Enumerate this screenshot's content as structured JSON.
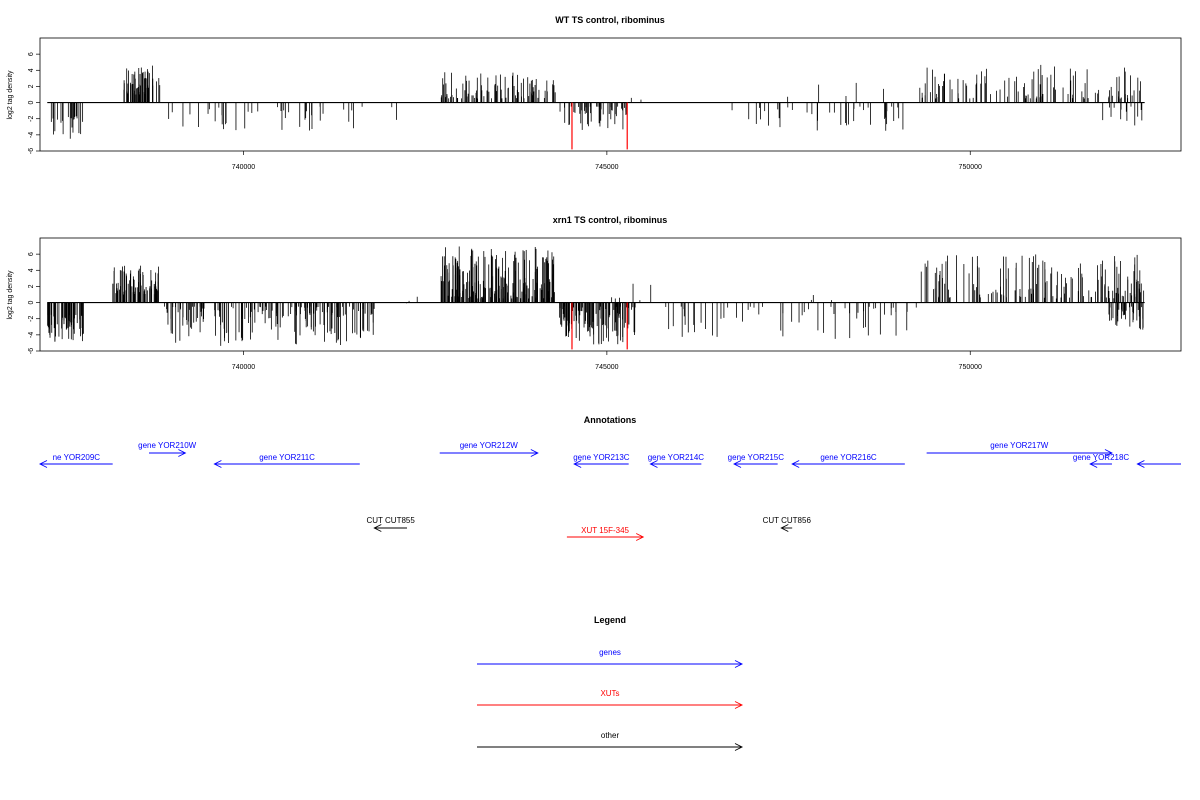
{
  "colors": {
    "gene": "#0000ff",
    "xut": "#ff0000",
    "other": "#000000",
    "signal": "#000000",
    "highlight": "#ff0000"
  },
  "chart_data": [
    {
      "type": "bar",
      "title": "WT TS control, ribominus",
      "ylabel": "log2 tag density",
      "xlim": [
        737200,
        752900
      ],
      "ylim": [
        -6,
        8
      ],
      "yticks": [
        -6,
        -4,
        -2,
        0,
        2,
        4,
        6
      ],
      "xticks": [
        740000,
        745000,
        750000
      ],
      "grid": false,
      "series": [
        {
          "segments": [
            {
              "x0": 737300,
              "x1": 737800,
              "min": -4.5,
              "max": -1.5,
              "density": 22
            },
            {
              "x0": 738350,
              "x1": 738850,
              "min": 1.0,
              "max": 4.6,
              "density": 60
            },
            {
              "x0": 738900,
              "x1": 741700,
              "min": -3.5,
              "max": -0.5,
              "density": 40
            },
            {
              "x0": 742000,
              "x1": 742200,
              "min": -2.5,
              "max": -0.5,
              "density": 2
            },
            {
              "x0": 742700,
              "x1": 744300,
              "min": 0.5,
              "max": 3.8,
              "density": 90
            },
            {
              "x0": 744350,
              "x1": 745300,
              "min": -3.5,
              "max": -0.5,
              "density": 50
            },
            {
              "x0": 745300,
              "x1": 745500,
              "min": 0.3,
              "max": 1.0,
              "density": 2
            },
            {
              "x0": 746700,
              "x1": 749100,
              "min": -3.5,
              "max": -0.5,
              "density": 38
            },
            {
              "x0": 747100,
              "x1": 749000,
              "min": 0.3,
              "max": 2.6,
              "density": 5
            },
            {
              "x0": 749300,
              "x1": 752400,
              "min": 0.5,
              "max": 4.9,
              "density": 110
            },
            {
              "x0": 751800,
              "x1": 752400,
              "min": -3.0,
              "max": -0.5,
              "density": 14
            }
          ],
          "highlights": [
            {
              "x": 744520,
              "y": -5.8
            },
            {
              "x": 745280,
              "y": -5.8
            }
          ]
        }
      ]
    },
    {
      "type": "bar",
      "title": "xrn1 TS control, ribominus",
      "ylabel": "log2 tag density",
      "xlim": [
        737200,
        752900
      ],
      "ylim": [
        -6,
        8
      ],
      "yticks": [
        -6,
        -4,
        -2,
        0,
        2,
        4,
        6
      ],
      "xticks": [
        740000,
        745000,
        750000
      ],
      "grid": false,
      "series": [
        {
          "segments": [
            {
              "x0": 737300,
              "x1": 737800,
              "min": -5.0,
              "max": -1.5,
              "density": 60
            },
            {
              "x0": 738200,
              "x1": 738850,
              "min": 1.0,
              "max": 4.8,
              "density": 80
            },
            {
              "x0": 738900,
              "x1": 741800,
              "min": -5.4,
              "max": -0.5,
              "density": 180
            },
            {
              "x0": 742200,
              "x1": 742400,
              "min": -0.5,
              "max": 1.0,
              "density": 3
            },
            {
              "x0": 742700,
              "x1": 744300,
              "min": 0.5,
              "max": 7.0,
              "density": 200
            },
            {
              "x0": 744350,
              "x1": 745400,
              "min": -5.2,
              "max": -0.5,
              "density": 110
            },
            {
              "x0": 745000,
              "x1": 745800,
              "min": 0.3,
              "max": 2.5,
              "density": 6
            },
            {
              "x0": 745800,
              "x1": 749300,
              "min": -4.5,
              "max": -0.5,
              "density": 60
            },
            {
              "x0": 747700,
              "x1": 748200,
              "min": 0.3,
              "max": 1.5,
              "density": 3
            },
            {
              "x0": 749300,
              "x1": 752400,
              "min": 0.5,
              "max": 6.0,
              "density": 150
            },
            {
              "x0": 751900,
              "x1": 752400,
              "min": -3.5,
              "max": -0.5,
              "density": 40
            }
          ],
          "highlights": [
            {
              "x": 744520,
              "y": -5.8
            },
            {
              "x": 745280,
              "y": -5.8
            }
          ]
        }
      ]
    }
  ],
  "annotations": {
    "title": "Annotations",
    "items": [
      {
        "kind": "gene",
        "label": "ne YOR209C",
        "start": 737200,
        "end": 738200,
        "strand": "-",
        "row": 1
      },
      {
        "kind": "gene",
        "label": "gene YOR210W",
        "start": 738700,
        "end": 739200,
        "strand": "+",
        "row": 0
      },
      {
        "kind": "gene",
        "label": "gene YOR211C",
        "start": 739600,
        "end": 741600,
        "strand": "-",
        "row": 1
      },
      {
        "kind": "gene",
        "label": "gene YOR212W",
        "start": 742700,
        "end": 744050,
        "strand": "+",
        "row": 0
      },
      {
        "kind": "gene",
        "label": "gene YOR213C",
        "start": 744550,
        "end": 745300,
        "strand": "-",
        "row": 1
      },
      {
        "kind": "gene",
        "label": "gene YOR214C",
        "start": 745600,
        "end": 746300,
        "strand": "-",
        "row": 1
      },
      {
        "kind": "gene",
        "label": "gene YOR215C",
        "start": 746750,
        "end": 747350,
        "strand": "-",
        "row": 1
      },
      {
        "kind": "gene",
        "label": "gene YOR216C",
        "start": 747550,
        "end": 749100,
        "strand": "-",
        "row": 1
      },
      {
        "kind": "gene",
        "label": "gene YOR217W",
        "start": 749400,
        "end": 751950,
        "strand": "+",
        "row": 0
      },
      {
        "kind": "gene",
        "label": "gene YOR218C",
        "start": 751650,
        "end": 751950,
        "strand": "-",
        "row": 1
      },
      {
        "kind": "gene",
        "label": "",
        "start": 752300,
        "end": 752900,
        "strand": "-",
        "row": 1
      },
      {
        "kind": "other",
        "label": "CUT CUT855",
        "start": 741800,
        "end": 742250,
        "strand": "-",
        "row": 2
      },
      {
        "kind": "xut",
        "label": "XUT 15F-345",
        "start": 744450,
        "end": 745500,
        "strand": "+",
        "row": 3
      },
      {
        "kind": "other",
        "label": "CUT CUT856",
        "start": 747400,
        "end": 747550,
        "strand": "-",
        "row": 2
      }
    ]
  },
  "legend": {
    "title": "Legend",
    "items": [
      {
        "kind": "gene",
        "label": "genes"
      },
      {
        "kind": "xut",
        "label": "XUTs"
      },
      {
        "kind": "other",
        "label": "other"
      }
    ]
  }
}
